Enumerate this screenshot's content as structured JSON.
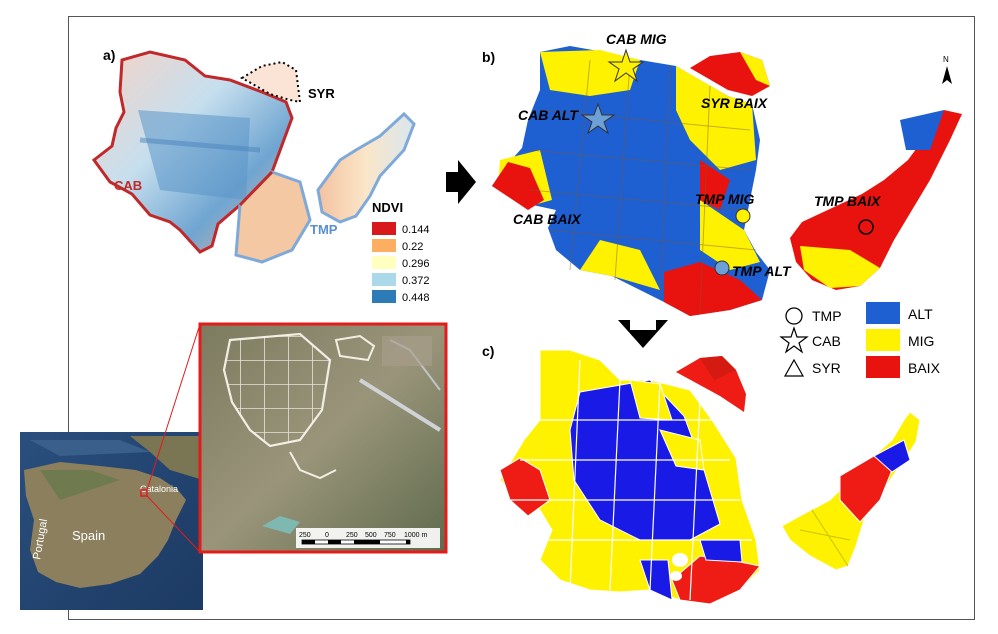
{
  "panels": {
    "a": "a)",
    "b": "b)",
    "c": "c)"
  },
  "panel_a": {
    "labels": {
      "cab": "CAB",
      "syr": "SYR",
      "tmp": "TMP"
    },
    "legend_title": "NDVI",
    "legend": [
      {
        "value": "0.144",
        "color": "#d7191c"
      },
      {
        "value": "0.22",
        "color": "#fdae61"
      },
      {
        "value": "0.296",
        "color": "#ffffbf"
      },
      {
        "value": "0.372",
        "color": "#abd9e9"
      },
      {
        "value": "0.448",
        "color": "#2c7bb6"
      }
    ],
    "colors": {
      "cab_outline": "#c0282a",
      "tmp_outline": "#7fa9d8",
      "syr_outline": "#000000"
    }
  },
  "panel_b": {
    "labels": {
      "cab_mig": "CAB MIG",
      "cab_alt": "CAB ALT",
      "cab_baix": "CAB BAIX",
      "syr_baix": "SYR BAIX",
      "tmp_mig": "TMP MIG",
      "tmp_alt": "TMP ALT",
      "tmp_baix": "TMP BAIX"
    },
    "north": "N",
    "colors": {
      "alt": "#1e5fd1",
      "mig": "#fff200",
      "baix": "#e8130f"
    }
  },
  "legend_b": {
    "symbols": [
      {
        "shape": "circle",
        "label": "TMP"
      },
      {
        "shape": "star",
        "label": "CAB"
      },
      {
        "shape": "triangle",
        "label": "SYR"
      }
    ],
    "classes": [
      {
        "label": "ALT",
        "color": "#1e5fd1"
      },
      {
        "label": "MIG",
        "color": "#fff200"
      },
      {
        "label": "BAIX",
        "color": "#e8130f"
      }
    ]
  },
  "panel_c": {
    "colors": {
      "alt": "#1a1ae6",
      "mig": "#fff200",
      "baix": "#ee1c14"
    }
  },
  "location_map": {
    "labels": {
      "portugal": "Portugal",
      "spain": "Spain",
      "catalonia": "Catalonia"
    }
  },
  "scale_bar": {
    "ticks": [
      "250",
      "0",
      "250",
      "500",
      "750",
      "1000 m"
    ]
  }
}
